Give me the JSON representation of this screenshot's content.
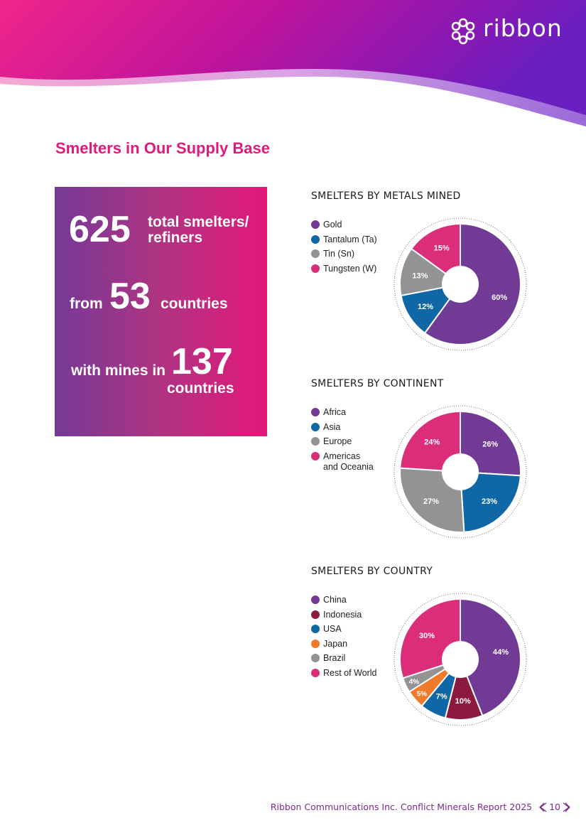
{
  "brand": {
    "name": "ribbon"
  },
  "page_title": "Smelters in Our Supply Base",
  "stats": {
    "total_number": "625",
    "total_label_line1": "total smelters/",
    "total_label_line2": "refiners",
    "from_word": "from",
    "countries_number": "53",
    "countries_word": "countries",
    "mines_prefix": "with mines in",
    "mines_number": "137",
    "mines_suffix": "countries"
  },
  "chart_data": [
    {
      "type": "pie",
      "title": "SMELTERS BY METALS MINED",
      "donut": true,
      "legend_position": "left",
      "series": [
        {
          "label": "Gold",
          "value": 60,
          "value_label": "60%",
          "color": "#703a95"
        },
        {
          "label": "Tantalum (Ta)",
          "value": 12,
          "value_label": "12%",
          "color": "#0f67a6"
        },
        {
          "label": "Tin (Sn)",
          "value": 13,
          "value_label": "13%",
          "color": "#939393"
        },
        {
          "label": "Tungsten (W)",
          "value": 15,
          "value_label": "15%",
          "color": "#dc2d7b"
        }
      ]
    },
    {
      "type": "pie",
      "title": "SMELTERS BY CONTINENT",
      "donut": true,
      "legend_position": "left",
      "series": [
        {
          "label": "Africa",
          "value": 26,
          "value_label": "26%",
          "color": "#703a95"
        },
        {
          "label": "Asia",
          "value": 23,
          "value_label": "23%",
          "color": "#0f67a6"
        },
        {
          "label": "Europe",
          "value": 27,
          "value_label": "27%",
          "color": "#939393"
        },
        {
          "label": "Americas",
          "label_line2": "and Oceania",
          "value": 24,
          "value_label": "24%",
          "color": "#dc2d7b"
        }
      ]
    },
    {
      "type": "pie",
      "title": "SMELTERS BY COUNTRY",
      "donut": true,
      "legend_position": "left",
      "series": [
        {
          "label": "China",
          "value": 44,
          "value_label": "44%",
          "color": "#703a95"
        },
        {
          "label": "Indonesia",
          "value": 10,
          "value_label": "10%",
          "color": "#8c1a3e"
        },
        {
          "label": "USA",
          "value": 7,
          "value_label": "7%",
          "color": "#0f67a6"
        },
        {
          "label": "Japan",
          "value": 5,
          "value_label": "5%",
          "color": "#ee7a2a"
        },
        {
          "label": "Brazil",
          "value": 4,
          "value_label": "4%",
          "color": "#939393"
        },
        {
          "label": "Rest of World",
          "value": 30,
          "value_label": "30%",
          "color": "#dc2d7b"
        }
      ]
    }
  ],
  "footer": {
    "text": "Ribbon Communications Inc. Conflict Minerals Report 2025",
    "page_number": "10"
  },
  "icons": {
    "logo": "ribbon-logo-icon",
    "prev": "prev-page-icon",
    "next": "next-page-icon"
  }
}
